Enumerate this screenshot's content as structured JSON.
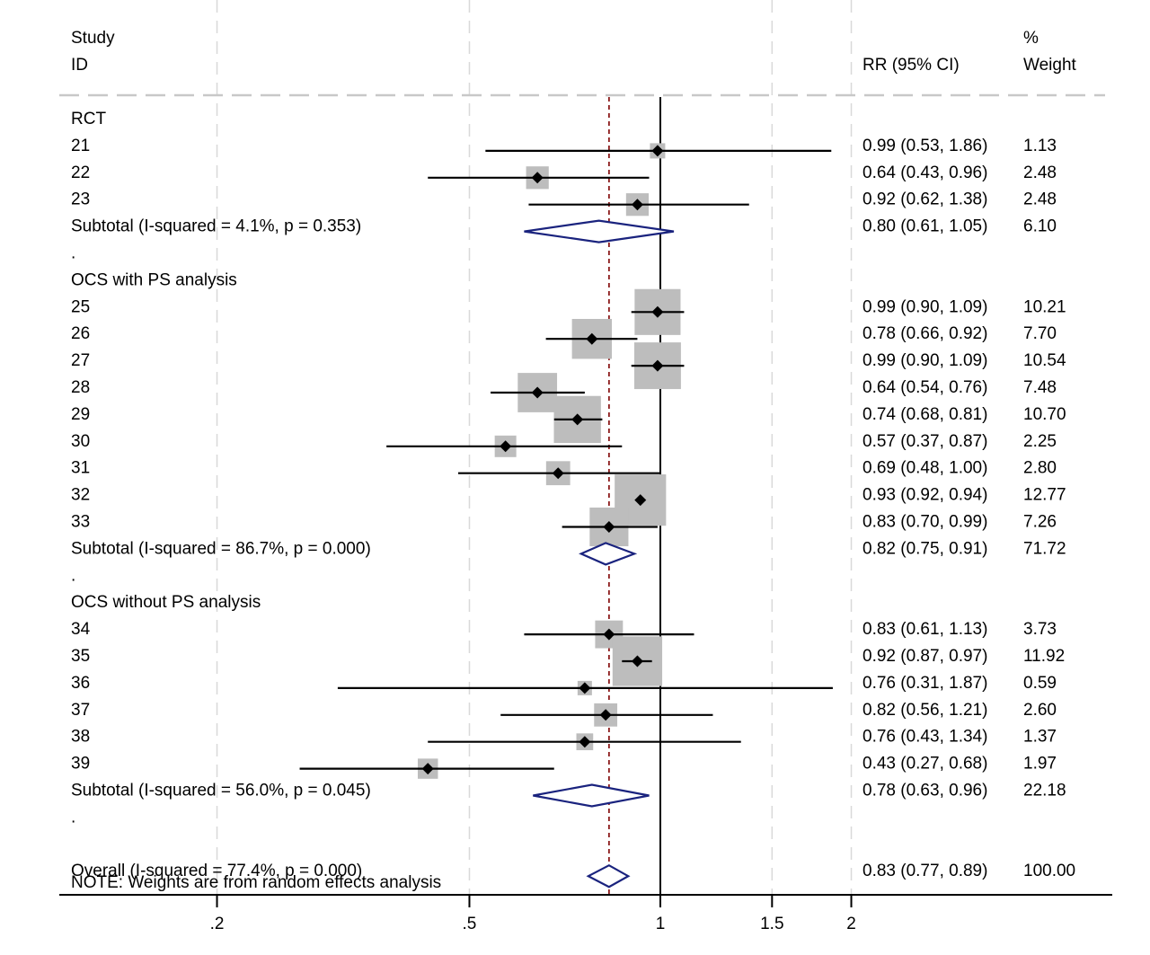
{
  "header": {
    "study_line1": "Study",
    "study_line2": "ID",
    "rr_label": "RR (95% CI)",
    "weight_line1": "%",
    "weight_line2": "Weight"
  },
  "note": "NOTE: Weights are from random effects analysis",
  "colors": {
    "box": "#bdbdbd",
    "diamond_stroke": "#1a237e",
    "overall_line": "#8b1a1a",
    "axis": "#000000",
    "grid": "#d9d9d9"
  },
  "chart_data": {
    "type": "forest",
    "x_scale": "log",
    "xlim": [
      0.16,
      2.4
    ],
    "x_ticks": [
      0.2,
      0.5,
      1,
      1.5,
      2
    ],
    "x_tick_labels": [
      ".2",
      ".5",
      "1",
      "1.5",
      "2"
    ],
    "null_line": 1,
    "overall_line": 0.83,
    "grid": "vertical dashed at ticks",
    "rows": [
      {
        "kind": "group",
        "label": "RCT"
      },
      {
        "kind": "study",
        "label": "21",
        "rr": 0.99,
        "lo": 0.53,
        "hi": 1.86,
        "rr_text": "0.99 (0.53, 1.86)",
        "weight": 1.13,
        "weight_text": "1.13"
      },
      {
        "kind": "study",
        "label": "22",
        "rr": 0.64,
        "lo": 0.43,
        "hi": 0.96,
        "rr_text": "0.64 (0.43, 0.96)",
        "weight": 2.48,
        "weight_text": "2.48"
      },
      {
        "kind": "study",
        "label": "23",
        "rr": 0.92,
        "lo": 0.62,
        "hi": 1.38,
        "rr_text": "0.92 (0.62, 1.38)",
        "weight": 2.48,
        "weight_text": "2.48"
      },
      {
        "kind": "subtotal",
        "label": "Subtotal  (I-squared = 4.1%, p = 0.353)",
        "rr": 0.8,
        "lo": 0.61,
        "hi": 1.05,
        "rr_text": "0.80 (0.61, 1.05)",
        "weight": 6.1,
        "weight_text": "6.10"
      },
      {
        "kind": "blank",
        "label": "."
      },
      {
        "kind": "group",
        "label": "OCS with PS analysis"
      },
      {
        "kind": "study",
        "label": "25",
        "rr": 0.99,
        "lo": 0.9,
        "hi": 1.09,
        "rr_text": "0.99 (0.90, 1.09)",
        "weight": 10.21,
        "weight_text": "10.21"
      },
      {
        "kind": "study",
        "label": "26",
        "rr": 0.78,
        "lo": 0.66,
        "hi": 0.92,
        "rr_text": "0.78 (0.66, 0.92)",
        "weight": 7.7,
        "weight_text": "7.70"
      },
      {
        "kind": "study",
        "label": "27",
        "rr": 0.99,
        "lo": 0.9,
        "hi": 1.09,
        "rr_text": "0.99 (0.90, 1.09)",
        "weight": 10.54,
        "weight_text": "10.54"
      },
      {
        "kind": "study",
        "label": "28",
        "rr": 0.64,
        "lo": 0.54,
        "hi": 0.76,
        "rr_text": "0.64 (0.54, 0.76)",
        "weight": 7.48,
        "weight_text": "7.48"
      },
      {
        "kind": "study",
        "label": "29",
        "rr": 0.74,
        "lo": 0.68,
        "hi": 0.81,
        "rr_text": "0.74 (0.68, 0.81)",
        "weight": 10.7,
        "weight_text": "10.70"
      },
      {
        "kind": "study",
        "label": "30",
        "rr": 0.57,
        "lo": 0.37,
        "hi": 0.87,
        "rr_text": "0.57 (0.37, 0.87)",
        "weight": 2.25,
        "weight_text": "2.25"
      },
      {
        "kind": "study",
        "label": "31",
        "rr": 0.69,
        "lo": 0.48,
        "hi": 1.0,
        "rr_text": "0.69 (0.48, 1.00)",
        "weight": 2.8,
        "weight_text": "2.80"
      },
      {
        "kind": "study",
        "label": "32",
        "rr": 0.93,
        "lo": 0.92,
        "hi": 0.94,
        "rr_text": "0.93 (0.92, 0.94)",
        "weight": 12.77,
        "weight_text": "12.77"
      },
      {
        "kind": "study",
        "label": "33",
        "rr": 0.83,
        "lo": 0.7,
        "hi": 0.99,
        "rr_text": "0.83 (0.70, 0.99)",
        "weight": 7.26,
        "weight_text": "7.26"
      },
      {
        "kind": "subtotal",
        "label": "Subtotal  (I-squared = 86.7%, p = 0.000)",
        "rr": 0.82,
        "lo": 0.75,
        "hi": 0.91,
        "rr_text": "0.82 (0.75, 0.91)",
        "weight": 71.72,
        "weight_text": "71.72"
      },
      {
        "kind": "blank",
        "label": "."
      },
      {
        "kind": "group",
        "label": "OCS without PS analysis"
      },
      {
        "kind": "study",
        "label": "34",
        "rr": 0.83,
        "lo": 0.61,
        "hi": 1.13,
        "rr_text": "0.83 (0.61, 1.13)",
        "weight": 3.73,
        "weight_text": "3.73"
      },
      {
        "kind": "study",
        "label": "35",
        "rr": 0.92,
        "lo": 0.87,
        "hi": 0.97,
        "rr_text": "0.92 (0.87, 0.97)",
        "weight": 11.92,
        "weight_text": "11.92"
      },
      {
        "kind": "study",
        "label": "36",
        "rr": 0.76,
        "lo": 0.31,
        "hi": 1.87,
        "rr_text": "0.76 (0.31, 1.87)",
        "weight": 0.59,
        "weight_text": "0.59"
      },
      {
        "kind": "study",
        "label": "37",
        "rr": 0.82,
        "lo": 0.56,
        "hi": 1.21,
        "rr_text": "0.82 (0.56, 1.21)",
        "weight": 2.6,
        "weight_text": "2.60"
      },
      {
        "kind": "study",
        "label": "38",
        "rr": 0.76,
        "lo": 0.43,
        "hi": 1.34,
        "rr_text": "0.76 (0.43, 1.34)",
        "weight": 1.37,
        "weight_text": "1.37"
      },
      {
        "kind": "study",
        "label": "39",
        "rr": 0.43,
        "lo": 0.27,
        "hi": 0.68,
        "rr_text": "0.43 (0.27, 0.68)",
        "weight": 1.97,
        "weight_text": "1.97"
      },
      {
        "kind": "subtotal",
        "label": "Subtotal  (I-squared = 56.0%, p = 0.045)",
        "rr": 0.78,
        "lo": 0.63,
        "hi": 0.96,
        "rr_text": "0.78 (0.63, 0.96)",
        "weight": 22.18,
        "weight_text": "22.18"
      },
      {
        "kind": "blank",
        "label": "."
      },
      {
        "kind": "overall",
        "label": "Overall  (I-squared = 77.4%, p = 0.000)",
        "rr": 0.83,
        "lo": 0.77,
        "hi": 0.89,
        "rr_text": "0.83 (0.77, 0.89)",
        "weight": 100.0,
        "weight_text": "100.00"
      }
    ]
  }
}
